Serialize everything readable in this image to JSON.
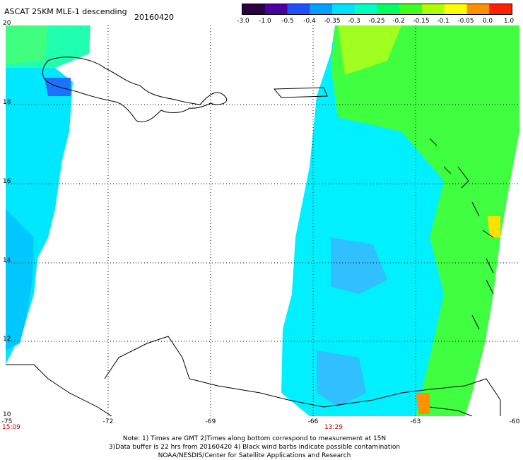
{
  "header": {
    "title": "ASCAT 25KM MLE-1 descending",
    "date": "20160420"
  },
  "colorbar": {
    "labels": [
      "-3.0",
      "-1.0",
      "-0.5",
      "-0.4",
      "-0.35",
      "-0.3",
      "-0.25",
      "-0.2",
      "-0.15",
      "-0.1",
      "-0.05",
      "0.0",
      "1.0"
    ],
    "colors": [
      "#2a0040",
      "#4b00a0",
      "#1f4fff",
      "#00a0ff",
      "#00e0ff",
      "#00ffc0",
      "#00ff60",
      "#40ff20",
      "#b0ff00",
      "#ffff00",
      "#ff9000",
      "#ff2000"
    ]
  },
  "map": {
    "lat_labels": [
      "20",
      "18",
      "16",
      "14",
      "12",
      "10"
    ],
    "lon_labels": [
      "-75",
      "-72",
      "-69",
      "-66",
      "-63",
      "-60"
    ],
    "time_labels": [
      "15:09",
      "13:29"
    ],
    "swath_colors": {
      "west_low": "#00c8ff",
      "west_mid": "#00e8ff",
      "west_high": "#20ffb0",
      "east_green": "#40ff40",
      "east_yellowgreen": "#a0ff20",
      "east_cyan": "#00f0ff",
      "east_blue": "#30c0ff",
      "east_orange": "#ff9000",
      "east_yellow": "#ffe000"
    }
  },
  "notes": {
    "line1": "Note: 1) Times are GMT 2)Times along bottom correspond to measurement at 15N",
    "line2": "3)Data buffer is 22 hrs from 20160420 4) Black wind barbs indicate possible contamination",
    "line3": "NOAA/NESDIS/Center for Satellite Applications and Research"
  }
}
